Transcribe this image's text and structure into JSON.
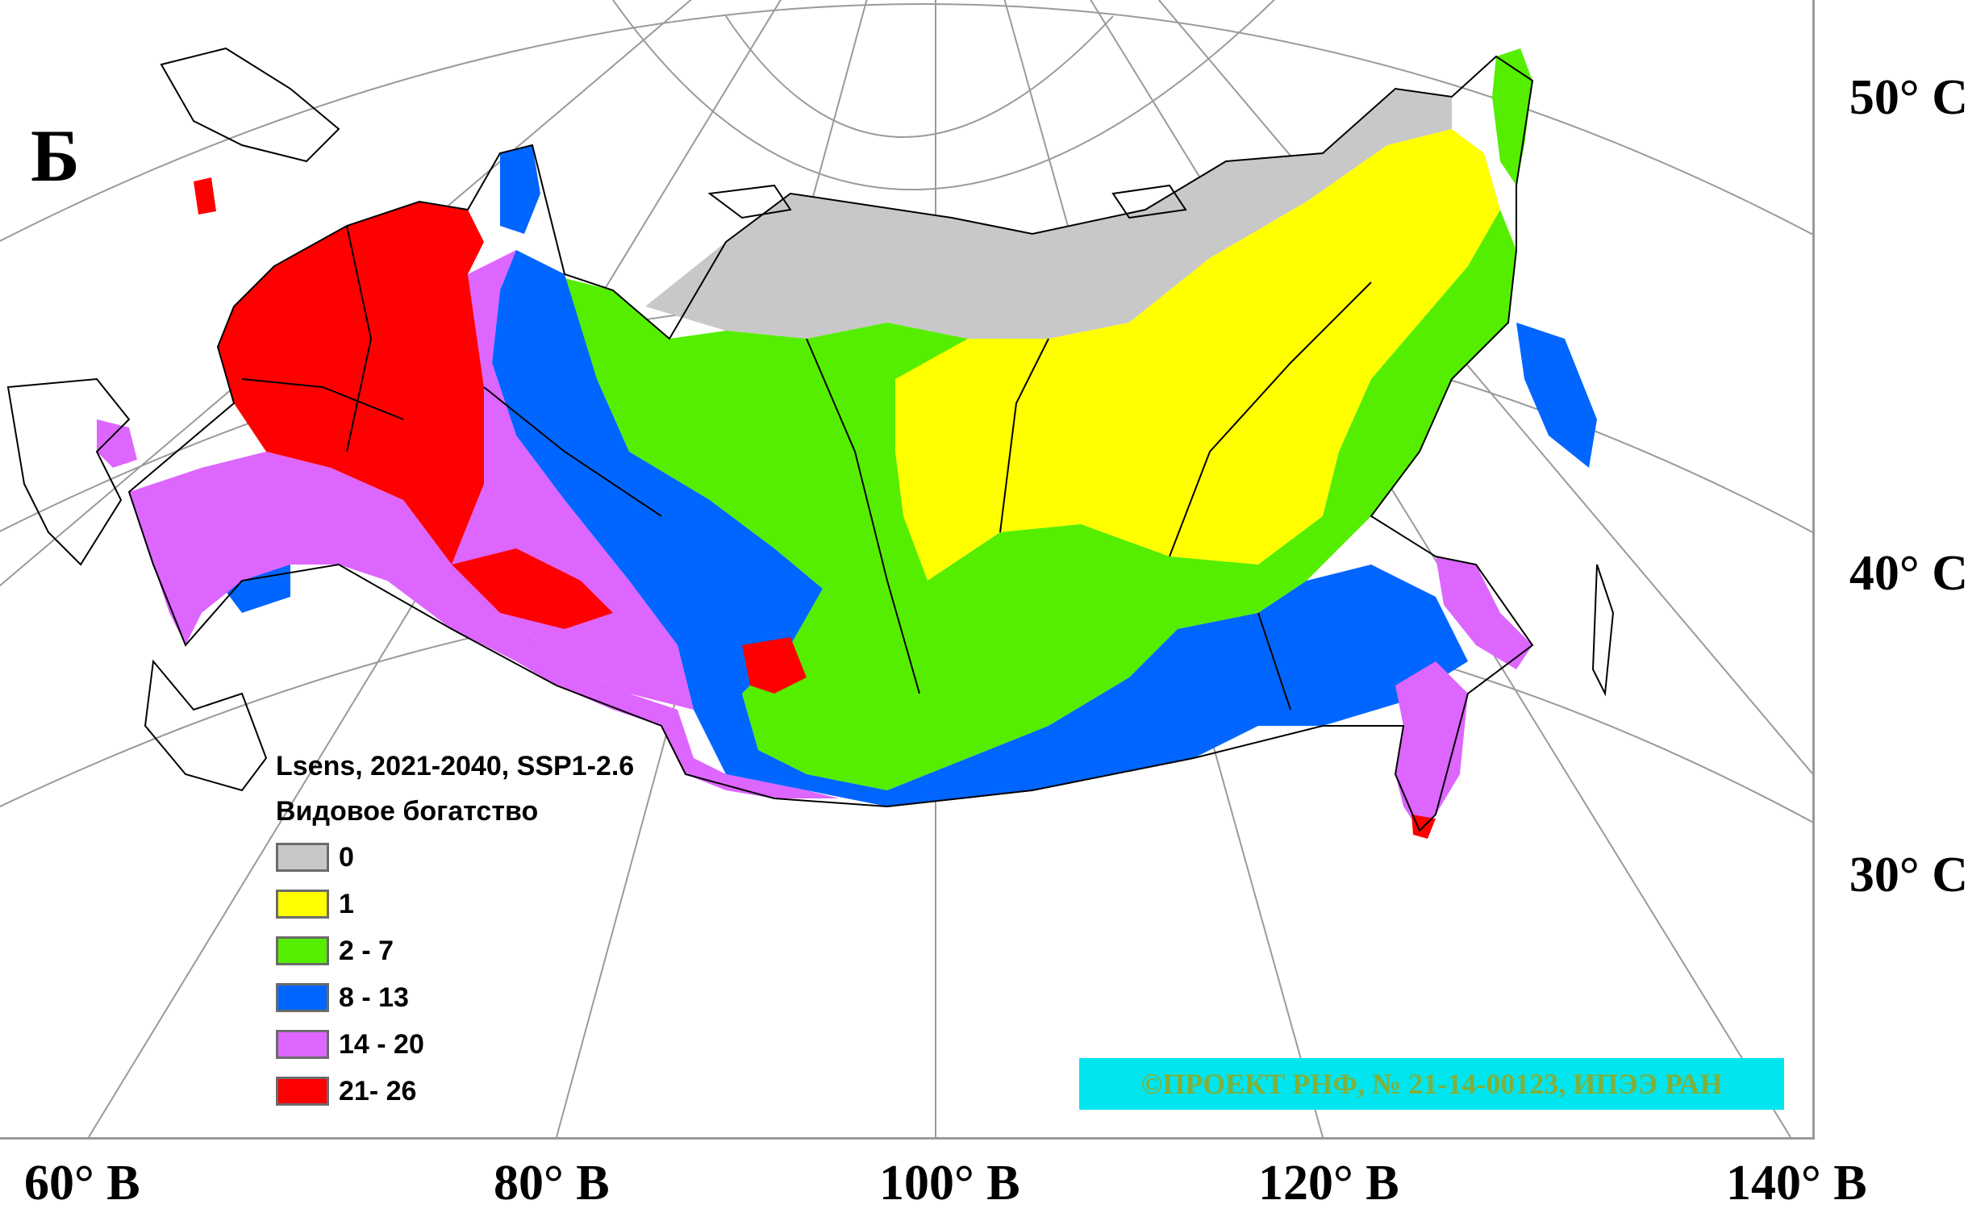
{
  "panel_letter": "Б",
  "latitude_labels": [
    "50° С",
    "40° С",
    "30° С"
  ],
  "longitude_labels": [
    "60° В",
    "80° В",
    "100° В",
    "120° В",
    "140° В"
  ],
  "legend": {
    "title_line1": "Lsens, 2021-2040, SSP1-2.6",
    "title_line2": "Видовое богатство",
    "classes": [
      {
        "label": "0",
        "color": "#c8c8c8"
      },
      {
        "label": "1",
        "color": "#ffff00"
      },
      {
        "label": "2 - 7",
        "color": "#55ee00"
      },
      {
        "label": "8 - 13",
        "color": "#0066ff"
      },
      {
        "label": "14 - 20",
        "color": "#dd66ff"
      },
      {
        "label": "21- 26",
        "color": "#ff0000"
      }
    ]
  },
  "copyright": "©ПРОЕКТ РНФ, № 21-14-00123, ИПЭЭ РАН",
  "colors": {
    "graticule": "#9a9a9a",
    "boundary": "#000000",
    "background": "#ffffff"
  }
}
